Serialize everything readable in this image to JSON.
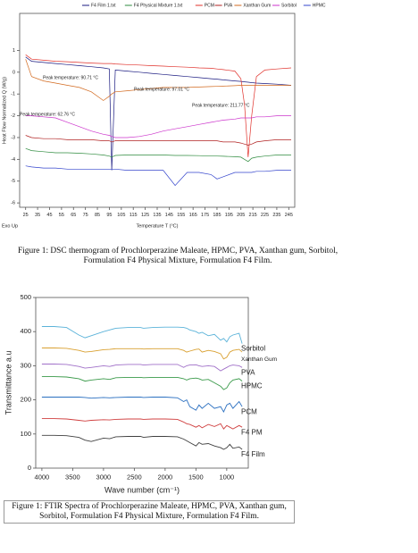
{
  "chart_data": [
    {
      "type": "line",
      "y_label": "Heat Flow Normalized Q (W/g)",
      "x_label": "Temperature T (°C)",
      "exo_label": "Exo Up",
      "caption": "Figure 1: DSC thermogram of Prochlorperazine Maleate, HPMC, PVA, Xanthan gum, Sorbitol, Formulation F4 Physical Mixture, Formulation F4 Film.",
      "legend": "top",
      "xlim": [
        20,
        250
      ],
      "xticks": [
        25,
        35,
        45,
        55,
        65,
        75,
        85,
        95,
        105,
        115,
        125,
        135,
        145,
        155,
        165,
        175,
        185,
        195,
        205,
        215,
        225,
        235,
        245
      ],
      "ylim": [
        -6.2,
        2.7
      ],
      "yticks": [
        1,
        0,
        -1,
        -2,
        -3,
        -4,
        -5,
        -6
      ],
      "x": [
        25,
        30,
        40,
        50,
        60,
        70,
        80,
        90,
        95,
        97,
        100,
        110,
        120,
        130,
        140,
        150,
        160,
        170,
        180,
        185,
        190,
        200,
        205,
        208,
        211,
        214,
        218,
        225,
        235,
        247
      ],
      "series": [
        {
          "name": "F4 Film 1.txt",
          "color": "#1a1a80",
          "values": [
            0.7,
            0.5,
            0.45,
            0.4,
            0.35,
            0.3,
            0.25,
            0.2,
            0.15,
            -4.5,
            0.1,
            0.05,
            0,
            -0.05,
            -0.1,
            -0.15,
            -0.2,
            -0.25,
            -0.3,
            -0.32,
            -0.35,
            -0.4,
            -0.42,
            -0.44,
            -0.46,
            -0.48,
            -0.5,
            -0.52,
            -0.55,
            -0.6
          ]
        },
        {
          "name": "F4 Physical Mixture 1.txt",
          "color": "#2e8b3e",
          "values": [
            -3.5,
            -3.6,
            -3.65,
            -3.7,
            -3.7,
            -3.72,
            -3.75,
            -3.8,
            -3.85,
            -3.9,
            -3.82,
            -3.8,
            -3.8,
            -3.8,
            -3.8,
            -3.82,
            -3.82,
            -3.83,
            -3.85,
            -3.85,
            -3.86,
            -3.88,
            -3.9,
            -4.0,
            -4.1,
            -3.95,
            -3.9,
            -3.85,
            -3.8,
            -3.8
          ]
        },
        {
          "name": "PCM",
          "color": "#e0302a",
          "values": [
            0.8,
            0.6,
            0.55,
            0.5,
            0.48,
            0.45,
            0.42,
            0.4,
            0.4,
            0.4,
            0.38,
            0.35,
            0.33,
            0.3,
            0.28,
            0.25,
            0.23,
            0.2,
            0.18,
            0.15,
            0.12,
            0.05,
            -0.3,
            -1.5,
            -3.9,
            -2.0,
            -0.2,
            0.1,
            0.15,
            0.2
          ]
        },
        {
          "name": "PVA",
          "color": "#b02020",
          "values": [
            -2.9,
            -3.0,
            -3.05,
            -3.05,
            -3.1,
            -3.1,
            -3.1,
            -3.15,
            -3.15,
            -3.2,
            -3.15,
            -3.15,
            -3.15,
            -3.15,
            -3.15,
            -3.15,
            -3.15,
            -3.15,
            -3.15,
            -3.15,
            -3.2,
            -3.2,
            -3.25,
            -3.3,
            -3.35,
            -3.3,
            -3.2,
            -3.15,
            -3.1,
            -3.1
          ]
        },
        {
          "name": "Xanthan Gum",
          "color": "#d2691e",
          "values": [
            0.6,
            -0.2,
            -0.4,
            -0.5,
            -0.6,
            -0.7,
            -0.9,
            -1.3,
            -1.1,
            -1.0,
            -0.9,
            -0.85,
            -0.8,
            -0.75,
            -0.7,
            -0.7,
            -0.7,
            -0.68,
            -0.66,
            -0.65,
            -0.64,
            -0.62,
            -0.6,
            -0.6,
            -0.6,
            -0.6,
            -0.6,
            -0.6,
            -0.6,
            -0.6
          ]
        },
        {
          "name": "Sorbitol",
          "color": "#cc33cc",
          "values": [
            -2.0,
            -2.0,
            -2.05,
            -2.1,
            -2.3,
            -2.5,
            -2.7,
            -2.85,
            -2.9,
            -2.95,
            -3.0,
            -3.0,
            -2.95,
            -2.85,
            -2.7,
            -2.6,
            -2.5,
            -2.4,
            -2.3,
            -2.25,
            -2.2,
            -2.15,
            -2.1,
            -2.1,
            -2.1,
            -2.1,
            -2.05,
            -2.05,
            -2.0,
            -2.0
          ]
        },
        {
          "name": "HPMC",
          "color": "#3344cc",
          "values": [
            -4.3,
            -4.35,
            -4.4,
            -4.4,
            -4.45,
            -4.45,
            -4.45,
            -4.45,
            -4.45,
            -4.45,
            -4.45,
            -4.5,
            -4.5,
            -4.5,
            -4.5,
            -5.2,
            -4.6,
            -4.6,
            -4.7,
            -4.9,
            -4.8,
            -4.6,
            -4.6,
            -4.6,
            -4.6,
            -4.6,
            -4.55,
            -4.55,
            -4.5,
            -4.5
          ]
        }
      ],
      "annotations": [
        {
          "text": "Peak temperature: 90.71 °C",
          "color": "#d2691e"
        },
        {
          "text": "Peak temperature: 97.01 °C",
          "color": "#1a1a80"
        },
        {
          "text": "Peak temperature: 211.77 °C",
          "color": "#222222"
        },
        {
          "text": "Peak temperature: 62.76 °C",
          "color": "#cc33cc"
        }
      ]
    },
    {
      "type": "line",
      "y_label": "Transmittance a.u",
      "x_label": "Wave number (cm⁻¹)",
      "caption": "Figure 1: FTIR Spectra of Prochlorperazine Maleate, HPMC, PVA, Xanthan gum, Sorbitol, Formulation F4 Physical Mixture, Formulation F4 Film.",
      "legend": "right",
      "xlim": [
        4100,
        650
      ],
      "xticks": [
        4000,
        3500,
        3000,
        2500,
        2000,
        1500,
        1000
      ],
      "ylim": [
        0,
        500
      ],
      "yticks": [
        0,
        100,
        200,
        300,
        400,
        500
      ],
      "x": [
        4000,
        3800,
        3600,
        3400,
        3300,
        3200,
        3000,
        2900,
        2800,
        2600,
        2400,
        2350,
        2200,
        2000,
        1800,
        1700,
        1650,
        1600,
        1500,
        1450,
        1400,
        1300,
        1200,
        1100,
        1050,
        1000,
        950,
        900,
        800,
        750
      ],
      "series": [
        {
          "name": "Sorbitol",
          "color": "#5bb3d9",
          "values": [
            415,
            415,
            412,
            390,
            382,
            388,
            400,
            405,
            410,
            412,
            412,
            410,
            412,
            413,
            413,
            412,
            410,
            405,
            400,
            395,
            398,
            388,
            392,
            375,
            380,
            370,
            385,
            390,
            395,
            365
          ]
        },
        {
          "name": "Xanthan Gum",
          "color": "#d9a030",
          "values": [
            352,
            352,
            351,
            345,
            340,
            342,
            347,
            348,
            350,
            350,
            350,
            349,
            350,
            350,
            350,
            345,
            340,
            343,
            348,
            349,
            340,
            345,
            342,
            335,
            320,
            325,
            340,
            345,
            348,
            340
          ]
        },
        {
          "name": "PVA",
          "color": "#a070c8",
          "values": [
            305,
            305,
            304,
            298,
            293,
            295,
            300,
            298,
            302,
            304,
            304,
            302,
            304,
            304,
            304,
            295,
            300,
            302,
            303,
            300,
            298,
            300,
            298,
            285,
            290,
            295,
            300,
            302,
            300,
            295
          ]
        },
        {
          "name": "HPMC",
          "color": "#3a9a4a",
          "values": [
            268,
            268,
            267,
            262,
            255,
            258,
            262,
            260,
            265,
            266,
            266,
            265,
            266,
            266,
            266,
            262,
            258,
            262,
            264,
            262,
            258,
            260,
            250,
            240,
            230,
            235,
            250,
            258,
            262,
            255
          ]
        },
        {
          "name": "PCM",
          "color": "#2a6fc0",
          "values": [
            208,
            208,
            208,
            208,
            207,
            205,
            207,
            206,
            207,
            208,
            208,
            207,
            208,
            208,
            206,
            195,
            200,
            180,
            170,
            185,
            175,
            190,
            175,
            180,
            165,
            185,
            190,
            175,
            195,
            180
          ]
        },
        {
          "name": "F4 PM",
          "color": "#d04040",
          "values": [
            145,
            145,
            144,
            140,
            138,
            140,
            142,
            141,
            143,
            144,
            144,
            143,
            144,
            144,
            143,
            135,
            130,
            128,
            120,
            125,
            118,
            128,
            122,
            130,
            115,
            125,
            120,
            115,
            125,
            120
          ]
        },
        {
          "name": "F4 Film",
          "color": "#404040",
          "values": [
            96,
            96,
            95,
            90,
            82,
            78,
            88,
            86,
            92,
            93,
            93,
            90,
            93,
            93,
            92,
            85,
            80,
            75,
            65,
            75,
            70,
            72,
            65,
            60,
            55,
            60,
            70,
            58,
            62,
            55
          ]
        }
      ]
    }
  ]
}
